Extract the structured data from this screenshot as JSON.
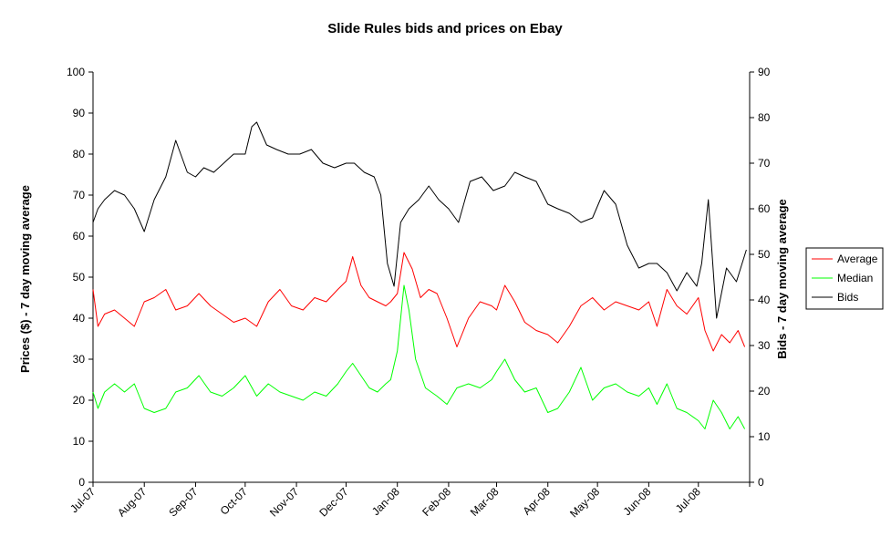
{
  "chart_data": {
    "type": "line",
    "title": "Slide Rules bids and prices on Ebay",
    "ylabel": "Prices ($) - 7 day moving average",
    "y2label": "Bids - 7 day moving average",
    "ylim": [
      0,
      100
    ],
    "y2lim": [
      0,
      90
    ],
    "yticks": [
      "0",
      "10",
      "20",
      "30",
      "40",
      "50",
      "60",
      "70",
      "80",
      "90",
      "100"
    ],
    "y2ticks": [
      "0",
      "10",
      "20",
      "30",
      "40",
      "50",
      "60",
      "70",
      "80",
      "90"
    ],
    "xlim": [
      "2007-07-01",
      "2008-08-01"
    ],
    "xticks": [
      "Jul-07",
      "Aug-07",
      "Sep-07",
      "Oct-07",
      "Nov-07",
      "Dec-07",
      "Jan-08",
      "Feb-08",
      "Mar-08",
      "Apr-08",
      "May-08",
      "Jun-08",
      "Jul-08"
    ],
    "grid": false,
    "legend_position": "right",
    "series": [
      {
        "name": "Average",
        "axis": "left",
        "color": "#ff0000",
        "x": [
          "2007-07-01",
          "2007-07-04",
          "2007-07-08",
          "2007-07-14",
          "2007-07-20",
          "2007-07-26",
          "2007-08-01",
          "2007-08-07",
          "2007-08-14",
          "2007-08-20",
          "2007-08-27",
          "2007-09-03",
          "2007-09-10",
          "2007-09-17",
          "2007-09-24",
          "2007-10-01",
          "2007-10-08",
          "2007-10-15",
          "2007-10-22",
          "2007-10-29",
          "2007-11-05",
          "2007-11-12",
          "2007-11-19",
          "2007-11-26",
          "2007-12-01",
          "2007-12-05",
          "2007-12-10",
          "2007-12-15",
          "2007-12-20",
          "2007-12-25",
          "2007-12-28",
          "2008-01-01",
          "2008-01-05",
          "2008-01-10",
          "2008-01-15",
          "2008-01-20",
          "2008-01-25",
          "2008-01-31",
          "2008-02-06",
          "2008-02-13",
          "2008-02-20",
          "2008-02-27",
          "2008-03-01",
          "2008-03-06",
          "2008-03-12",
          "2008-03-18",
          "2008-03-25",
          "2008-04-01",
          "2008-04-07",
          "2008-04-14",
          "2008-04-21",
          "2008-04-28",
          "2008-05-05",
          "2008-05-12",
          "2008-05-19",
          "2008-05-26",
          "2008-06-01",
          "2008-06-06",
          "2008-06-12",
          "2008-06-18",
          "2008-06-24",
          "2008-07-01",
          "2008-07-05",
          "2008-07-10",
          "2008-07-15",
          "2008-07-20",
          "2008-07-25",
          "2008-07-29"
        ],
        "values": [
          47,
          38,
          41,
          42,
          40,
          38,
          44,
          45,
          47,
          42,
          43,
          46,
          43,
          41,
          39,
          40,
          38,
          44,
          47,
          43,
          42,
          45,
          44,
          47,
          49,
          55,
          48,
          45,
          44,
          43,
          44,
          46,
          56,
          52,
          45,
          47,
          46,
          40,
          33,
          40,
          44,
          43,
          42,
          48,
          44,
          39,
          37,
          36,
          34,
          38,
          43,
          45,
          42,
          44,
          43,
          42,
          44,
          38,
          47,
          43,
          41,
          45,
          37,
          32,
          36,
          34,
          37,
          33
        ]
      },
      {
        "name": "Median",
        "axis": "left",
        "color": "#00ff00",
        "x": [
          "2007-07-01",
          "2007-07-04",
          "2007-07-08",
          "2007-07-14",
          "2007-07-20",
          "2007-07-26",
          "2007-08-01",
          "2007-08-07",
          "2007-08-14",
          "2007-08-20",
          "2007-08-27",
          "2007-09-03",
          "2007-09-10",
          "2007-09-17",
          "2007-09-24",
          "2007-10-01",
          "2007-10-08",
          "2007-10-15",
          "2007-10-22",
          "2007-10-29",
          "2007-11-05",
          "2007-11-12",
          "2007-11-19",
          "2007-11-26",
          "2007-12-01",
          "2007-12-05",
          "2007-12-10",
          "2007-12-15",
          "2007-12-20",
          "2007-12-25",
          "2007-12-28",
          "2008-01-01",
          "2008-01-05",
          "2008-01-08",
          "2008-01-12",
          "2008-01-18",
          "2008-01-25",
          "2008-01-31",
          "2008-02-06",
          "2008-02-13",
          "2008-02-20",
          "2008-02-27",
          "2008-03-01",
          "2008-03-06",
          "2008-03-12",
          "2008-03-18",
          "2008-03-25",
          "2008-04-01",
          "2008-04-07",
          "2008-04-14",
          "2008-04-21",
          "2008-04-28",
          "2008-05-05",
          "2008-05-12",
          "2008-05-19",
          "2008-05-26",
          "2008-06-01",
          "2008-06-06",
          "2008-06-12",
          "2008-06-18",
          "2008-06-24",
          "2008-07-01",
          "2008-07-05",
          "2008-07-10",
          "2008-07-15",
          "2008-07-20",
          "2008-07-25",
          "2008-07-29"
        ],
        "values": [
          22,
          18,
          22,
          24,
          22,
          24,
          18,
          17,
          18,
          22,
          23,
          26,
          22,
          21,
          23,
          26,
          21,
          24,
          22,
          21,
          20,
          22,
          21,
          24,
          27,
          29,
          26,
          23,
          22,
          24,
          25,
          32,
          48,
          42,
          30,
          23,
          21,
          19,
          23,
          24,
          23,
          25,
          27,
          30,
          25,
          22,
          23,
          17,
          18,
          22,
          28,
          20,
          23,
          24,
          22,
          21,
          23,
          19,
          24,
          18,
          17,
          15,
          13,
          20,
          17,
          13,
          16,
          13
        ]
      },
      {
        "name": "Bids",
        "axis": "right",
        "color": "#000000",
        "x": [
          "2007-07-01",
          "2007-07-04",
          "2007-07-08",
          "2007-07-14",
          "2007-07-20",
          "2007-07-26",
          "2007-08-01",
          "2007-08-07",
          "2007-08-14",
          "2007-08-20",
          "2007-08-27",
          "2007-09-01",
          "2007-09-06",
          "2007-09-12",
          "2007-09-18",
          "2007-09-24",
          "2007-10-01",
          "2007-10-05",
          "2007-10-08",
          "2007-10-14",
          "2007-10-20",
          "2007-10-27",
          "2007-11-03",
          "2007-11-10",
          "2007-11-17",
          "2007-11-24",
          "2007-12-01",
          "2007-12-06",
          "2007-12-12",
          "2007-12-18",
          "2007-12-22",
          "2007-12-26",
          "2007-12-30",
          "2008-01-03",
          "2008-01-08",
          "2008-01-14",
          "2008-01-20",
          "2008-01-26",
          "2008-02-01",
          "2008-02-07",
          "2008-02-14",
          "2008-02-21",
          "2008-02-28",
          "2008-03-06",
          "2008-03-12",
          "2008-03-18",
          "2008-03-25",
          "2008-04-01",
          "2008-04-07",
          "2008-04-14",
          "2008-04-21",
          "2008-04-28",
          "2008-05-05",
          "2008-05-12",
          "2008-05-19",
          "2008-05-26",
          "2008-06-01",
          "2008-06-06",
          "2008-06-12",
          "2008-06-18",
          "2008-06-24",
          "2008-06-30",
          "2008-07-03",
          "2008-07-07",
          "2008-07-12",
          "2008-07-18",
          "2008-07-24",
          "2008-07-30"
        ],
        "values": [
          57,
          60,
          62,
          64,
          63,
          60,
          55,
          62,
          67,
          75,
          68,
          67,
          69,
          68,
          70,
          72,
          72,
          78,
          79,
          74,
          73,
          72,
          72,
          73,
          70,
          69,
          70,
          70,
          68,
          67,
          63,
          48,
          43,
          57,
          60,
          62,
          65,
          62,
          60,
          57,
          66,
          67,
          64,
          65,
          68,
          67,
          66,
          61,
          60,
          59,
          57,
          58,
          64,
          61,
          52,
          47,
          48,
          48,
          46,
          42,
          46,
          43,
          48,
          62,
          36,
          47,
          44,
          51
        ]
      }
    ]
  }
}
